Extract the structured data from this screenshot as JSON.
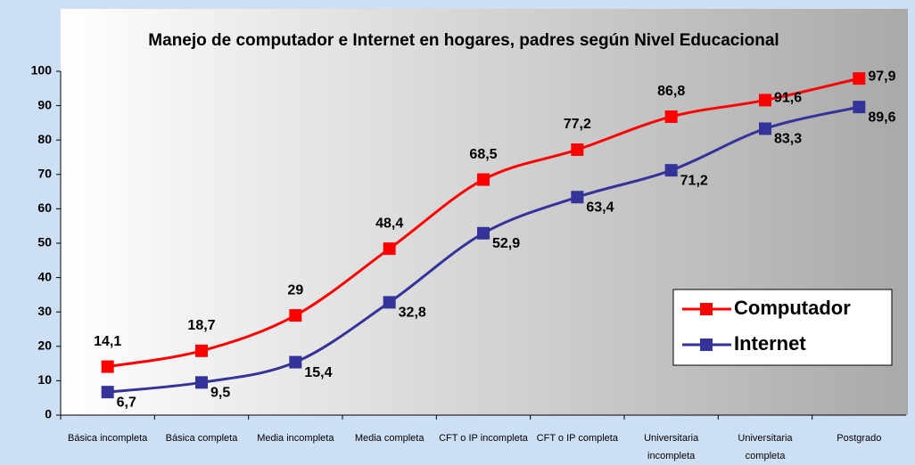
{
  "chart_data": {
    "type": "line",
    "title": "Manejo de computador e Internet en hogares, padres según Nivel Educacional",
    "categories": [
      "Básica incompleta",
      "Básica completa",
      "Media incompleta",
      "Media completa",
      "CFT o IP incompleta",
      "CFT o IP completa",
      "Universitaria incompleta",
      "Universitaria completa",
      "Postgrado"
    ],
    "series": [
      {
        "name": "Computador",
        "color": "#ff0000",
        "values": [
          14.1,
          18.7,
          29,
          48.4,
          68.5,
          77.2,
          86.8,
          91.6,
          97.9
        ],
        "value_labels": [
          "14,1",
          "18,7",
          "29",
          "48,4",
          "68,5",
          "77,2",
          "86,8",
          "91,6",
          "97,9"
        ]
      },
      {
        "name": "Internet",
        "color": "#333399",
        "values": [
          6.7,
          9.5,
          15.4,
          32.8,
          52.9,
          63.4,
          71.2,
          83.3,
          89.6
        ],
        "value_labels": [
          "6,7",
          "9,5",
          "15,4",
          "32,8",
          "52,9",
          "63,4",
          "71,2",
          "83,3",
          "89,6"
        ]
      }
    ],
    "ylim": [
      0,
      100
    ],
    "yticks": [
      0,
      10,
      20,
      30,
      40,
      50,
      60,
      70,
      80,
      90,
      100
    ],
    "grid": false,
    "legend": "right"
  }
}
